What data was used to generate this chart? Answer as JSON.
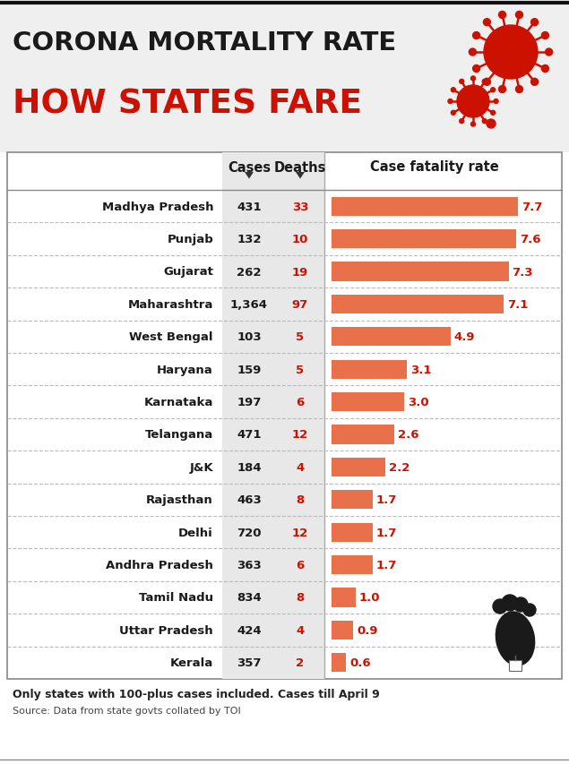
{
  "title_line1": "CORONA MORTALITY RATE",
  "title_line2": "HOW STATES FARE",
  "col_cases": "Cases",
  "col_deaths": "Deaths",
  "col_cfr": "Case fatality rate",
  "states": [
    "Madhya Pradesh",
    "Punjab",
    "Gujarat",
    "Maharashtra",
    "West Bengal",
    "Haryana",
    "Karnataka",
    "Telangana",
    "J&K",
    "Rajasthan",
    "Delhi",
    "Andhra Pradesh",
    "Tamil Nadu",
    "Uttar Pradesh",
    "Kerala"
  ],
  "cases": [
    "431",
    "132",
    "262",
    "1,364",
    "103",
    "159",
    "197",
    "471",
    "184",
    "463",
    "720",
    "363",
    "834",
    "424",
    "357"
  ],
  "deaths": [
    "33",
    "10",
    "19",
    "97",
    "5",
    "5",
    "6",
    "12",
    "4",
    "8",
    "12",
    "6",
    "8",
    "4",
    "2"
  ],
  "cfr": [
    7.7,
    7.6,
    7.3,
    7.1,
    4.9,
    3.1,
    3.0,
    2.6,
    2.2,
    1.7,
    1.7,
    1.7,
    1.0,
    0.9,
    0.6
  ],
  "bar_color": "#E8704A",
  "title1_color": "#1a1a1a",
  "title2_color": "#CC1100",
  "header_color": "#1a1a1a",
  "deaths_color": "#CC1100",
  "cfr_color": "#CC1100",
  "state_color": "#1a1a1a",
  "cases_color": "#1a1a1a",
  "bg_color": "#FFFFFF",
  "title_bg": "#F0F0F0",
  "footer_text": "Only states with 100-plus cases included. Cases till April 9",
  "source_text": "Source: Data from state govts collated by TOI",
  "max_cfr": 8.5,
  "virus_color": "#CC1100",
  "foot_color": "#1a1a1a",
  "gray_col_bg": "#E0E0E0"
}
